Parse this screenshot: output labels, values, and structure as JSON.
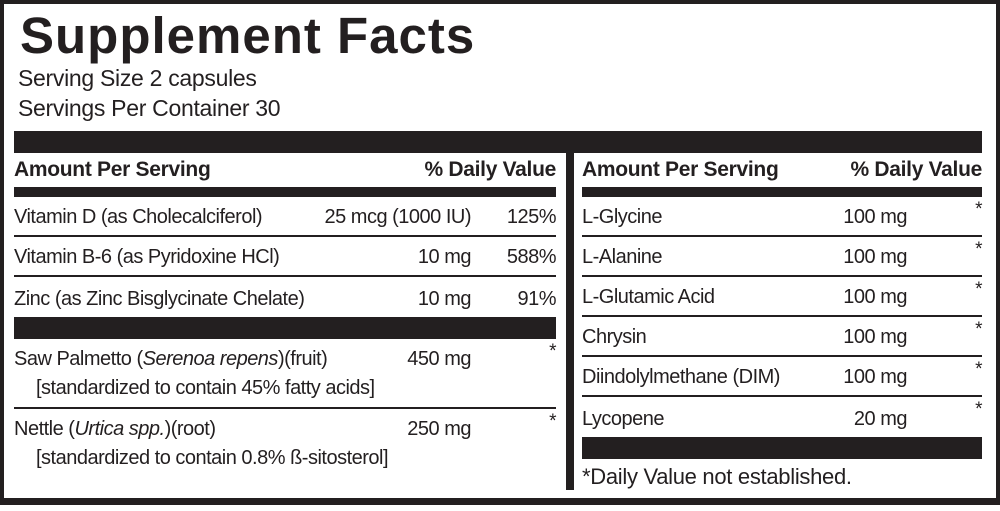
{
  "panel": {
    "title": "Supplement Facts",
    "serving_size": "Serving Size 2 capsules",
    "servings_per_container": "Servings Per Container 30",
    "headers": {
      "amount": "Amount Per Serving",
      "daily_value": "% Daily Value"
    },
    "footnote": "*Daily Value not established.",
    "colors": {
      "ink": "#231f20",
      "background": "#ffffff"
    },
    "left_column": {
      "rows": [
        {
          "name": "Vitamin D (as Cholecalciferol)",
          "amount": "25 mcg (1000 IU)",
          "daily_value": "125%"
        },
        {
          "name": "Vitamin B-6 (as Pyridoxine HCl)",
          "amount": "10 mg",
          "daily_value": "588%"
        },
        {
          "name": "Zinc (as Zinc Bisglycinate Chelate)",
          "amount": "10 mg",
          "daily_value": "91%"
        },
        {
          "name_prefix": "Saw Palmetto (",
          "latin": "Serenoa repens",
          "name_suffix": ")(fruit)",
          "amount": "450 mg",
          "daily_value": "*",
          "note": "[standardized to contain 45% fatty acids]"
        },
        {
          "name_prefix": "Nettle (",
          "latin": "Urtica spp.",
          "name_suffix": ")(root)",
          "amount": "250 mg",
          "daily_value": "*",
          "note": "[standardized to contain 0.8% ß-sitosterol]"
        }
      ]
    },
    "right_column": {
      "rows": [
        {
          "name": "L-Glycine",
          "amount": "100 mg",
          "daily_value": "*"
        },
        {
          "name": "L-Alanine",
          "amount": "100 mg",
          "daily_value": "*"
        },
        {
          "name": "L-Glutamic Acid",
          "amount": "100 mg",
          "daily_value": "*"
        },
        {
          "name": "Chrysin",
          "amount": "100 mg",
          "daily_value": "*"
        },
        {
          "name": "Diindolylmethane (DIM)",
          "amount": "100 mg",
          "daily_value": "*"
        },
        {
          "name": "Lycopene",
          "amount": "20 mg",
          "daily_value": "*"
        }
      ]
    }
  }
}
